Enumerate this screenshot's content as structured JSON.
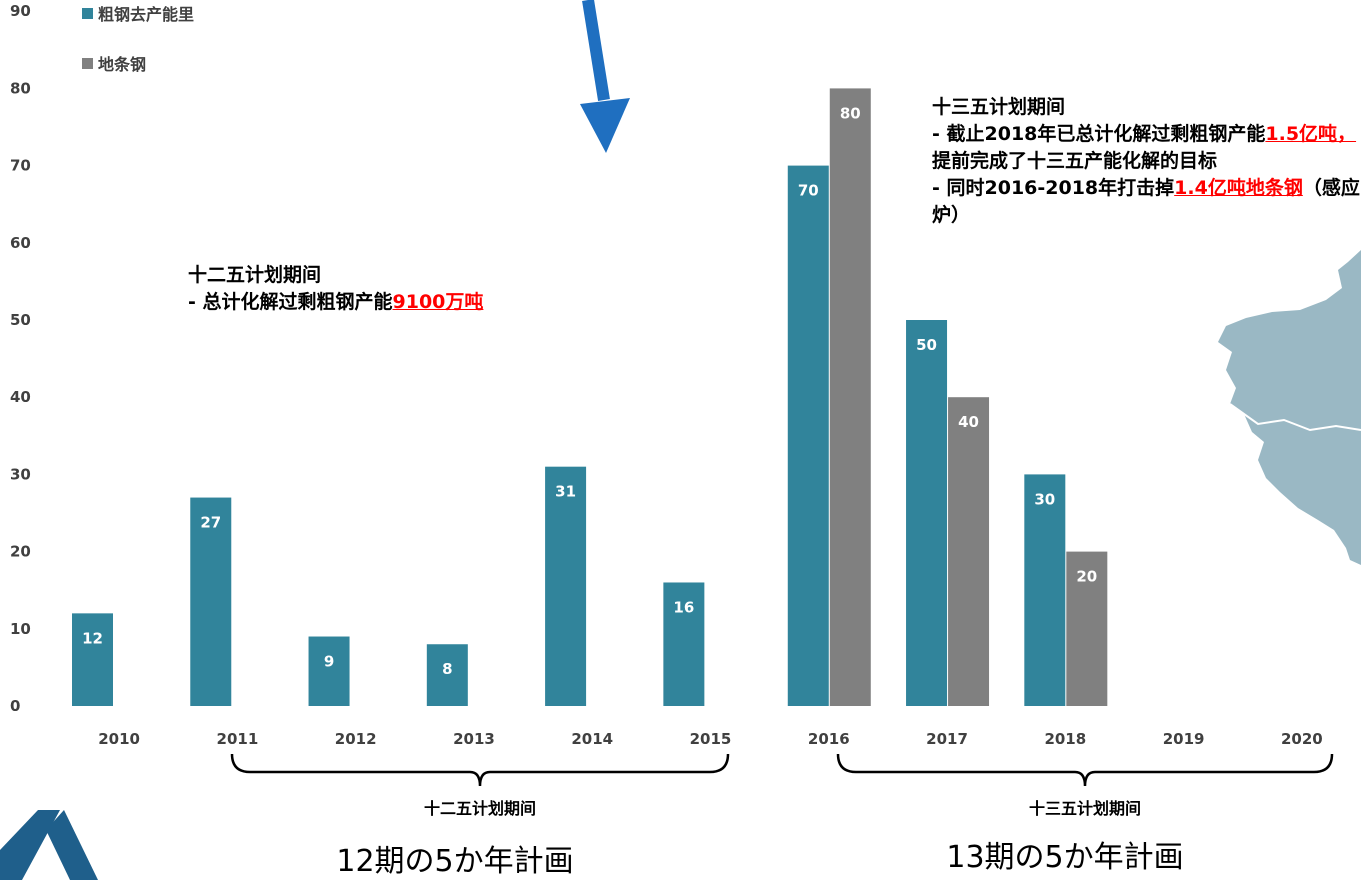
{
  "chart_data": {
    "type": "bar",
    "categories": [
      "2010",
      "2011",
      "2012",
      "2013",
      "2014",
      "2015",
      "2016",
      "2017",
      "2018",
      "2019",
      "2020"
    ],
    "series": [
      {
        "name": "粗钢去产能里",
        "color": "#31849b",
        "values": [
          12,
          27,
          9,
          8,
          31,
          16,
          70,
          50,
          30,
          null,
          null
        ]
      },
      {
        "name": "地条钢",
        "color": "#808080",
        "values": [
          null,
          null,
          null,
          null,
          null,
          null,
          80,
          40,
          20,
          null,
          null
        ]
      }
    ],
    "ylim": [
      0,
      90
    ],
    "yticks": [
      0,
      10,
      20,
      30,
      40,
      50,
      60,
      70,
      80,
      90
    ],
    "grid": false,
    "legend_position": "top-left"
  },
  "annotations": {
    "period12": {
      "title": "十二五计划期间",
      "line_prefix": "- 总计化解过剩粗钢产能",
      "highlight": "9100万吨"
    },
    "period13": {
      "title": "十三五计划期间",
      "line1_prefix": "- 截止2018年已总计化解过剩粗钢产能",
      "line1_highlight": "1.5亿吨，",
      "line1_suffix": "提前完成了十三五产能化解的目标",
      "line2_prefix": "- 同时2016-2018年打击掉",
      "line2_highlight": "1.4亿吨地条钢",
      "line2_suffix": "（感应炉）"
    }
  },
  "periods": {
    "p12_label": "十二五计划期间",
    "p13_label": "十三五计划期间",
    "p12_jp": "12期の5か年計画",
    "p13_jp": "13期の5か年計画"
  },
  "colors": {
    "arrow": "#1f6fc0",
    "map": "#9ab8c4",
    "logo": "#1f5f8b"
  }
}
